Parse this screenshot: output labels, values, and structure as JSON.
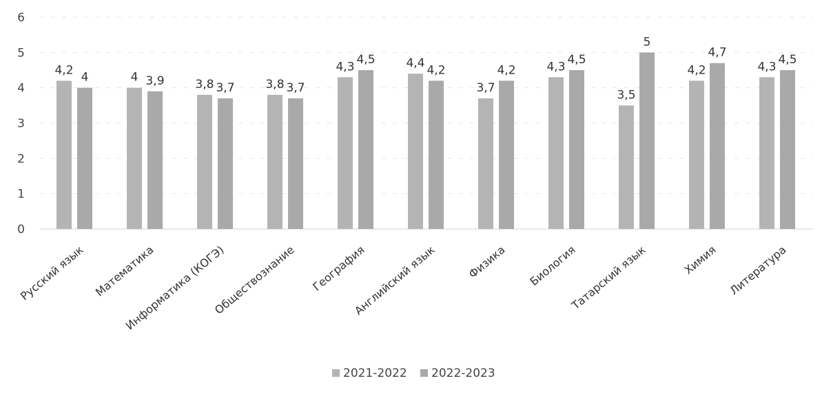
{
  "chart_data": {
    "type": "bar",
    "categories": [
      "Русский язык",
      "Математика",
      "Информатика (КОГЭ)",
      "Обществознание",
      "География",
      "Английский язык",
      "Физика",
      "Биология",
      "Татарский язык",
      "Химия",
      "Литература"
    ],
    "series": [
      {
        "name": "2021-2022",
        "values": [
          4.2,
          4,
          3.8,
          3.8,
          4.3,
          4.4,
          3.7,
          4.3,
          3.5,
          4.2,
          4.3
        ],
        "labels": [
          "4,2",
          "4",
          "3,8",
          "3,8",
          "4,3",
          "4,4",
          "3,7",
          "4,3",
          "3,5",
          "4,2",
          "4,3"
        ],
        "color": "#b4b4b4"
      },
      {
        "name": "2022-2023",
        "values": [
          4,
          3.9,
          3.7,
          3.7,
          4.5,
          4.2,
          4.2,
          4.5,
          5,
          4.7,
          4.5
        ],
        "labels": [
          "4",
          "3,9",
          "3,7",
          "3,7",
          "4,5",
          "4,2",
          "4,2",
          "4,5",
          "5",
          "4,7",
          "4,5"
        ],
        "color": "#a9a9a9"
      }
    ],
    "ylim": [
      0,
      6
    ],
    "yticks": [
      "0",
      "1",
      "2",
      "3",
      "4",
      "5",
      "6"
    ],
    "grid": true,
    "legend_position": "bottom"
  }
}
